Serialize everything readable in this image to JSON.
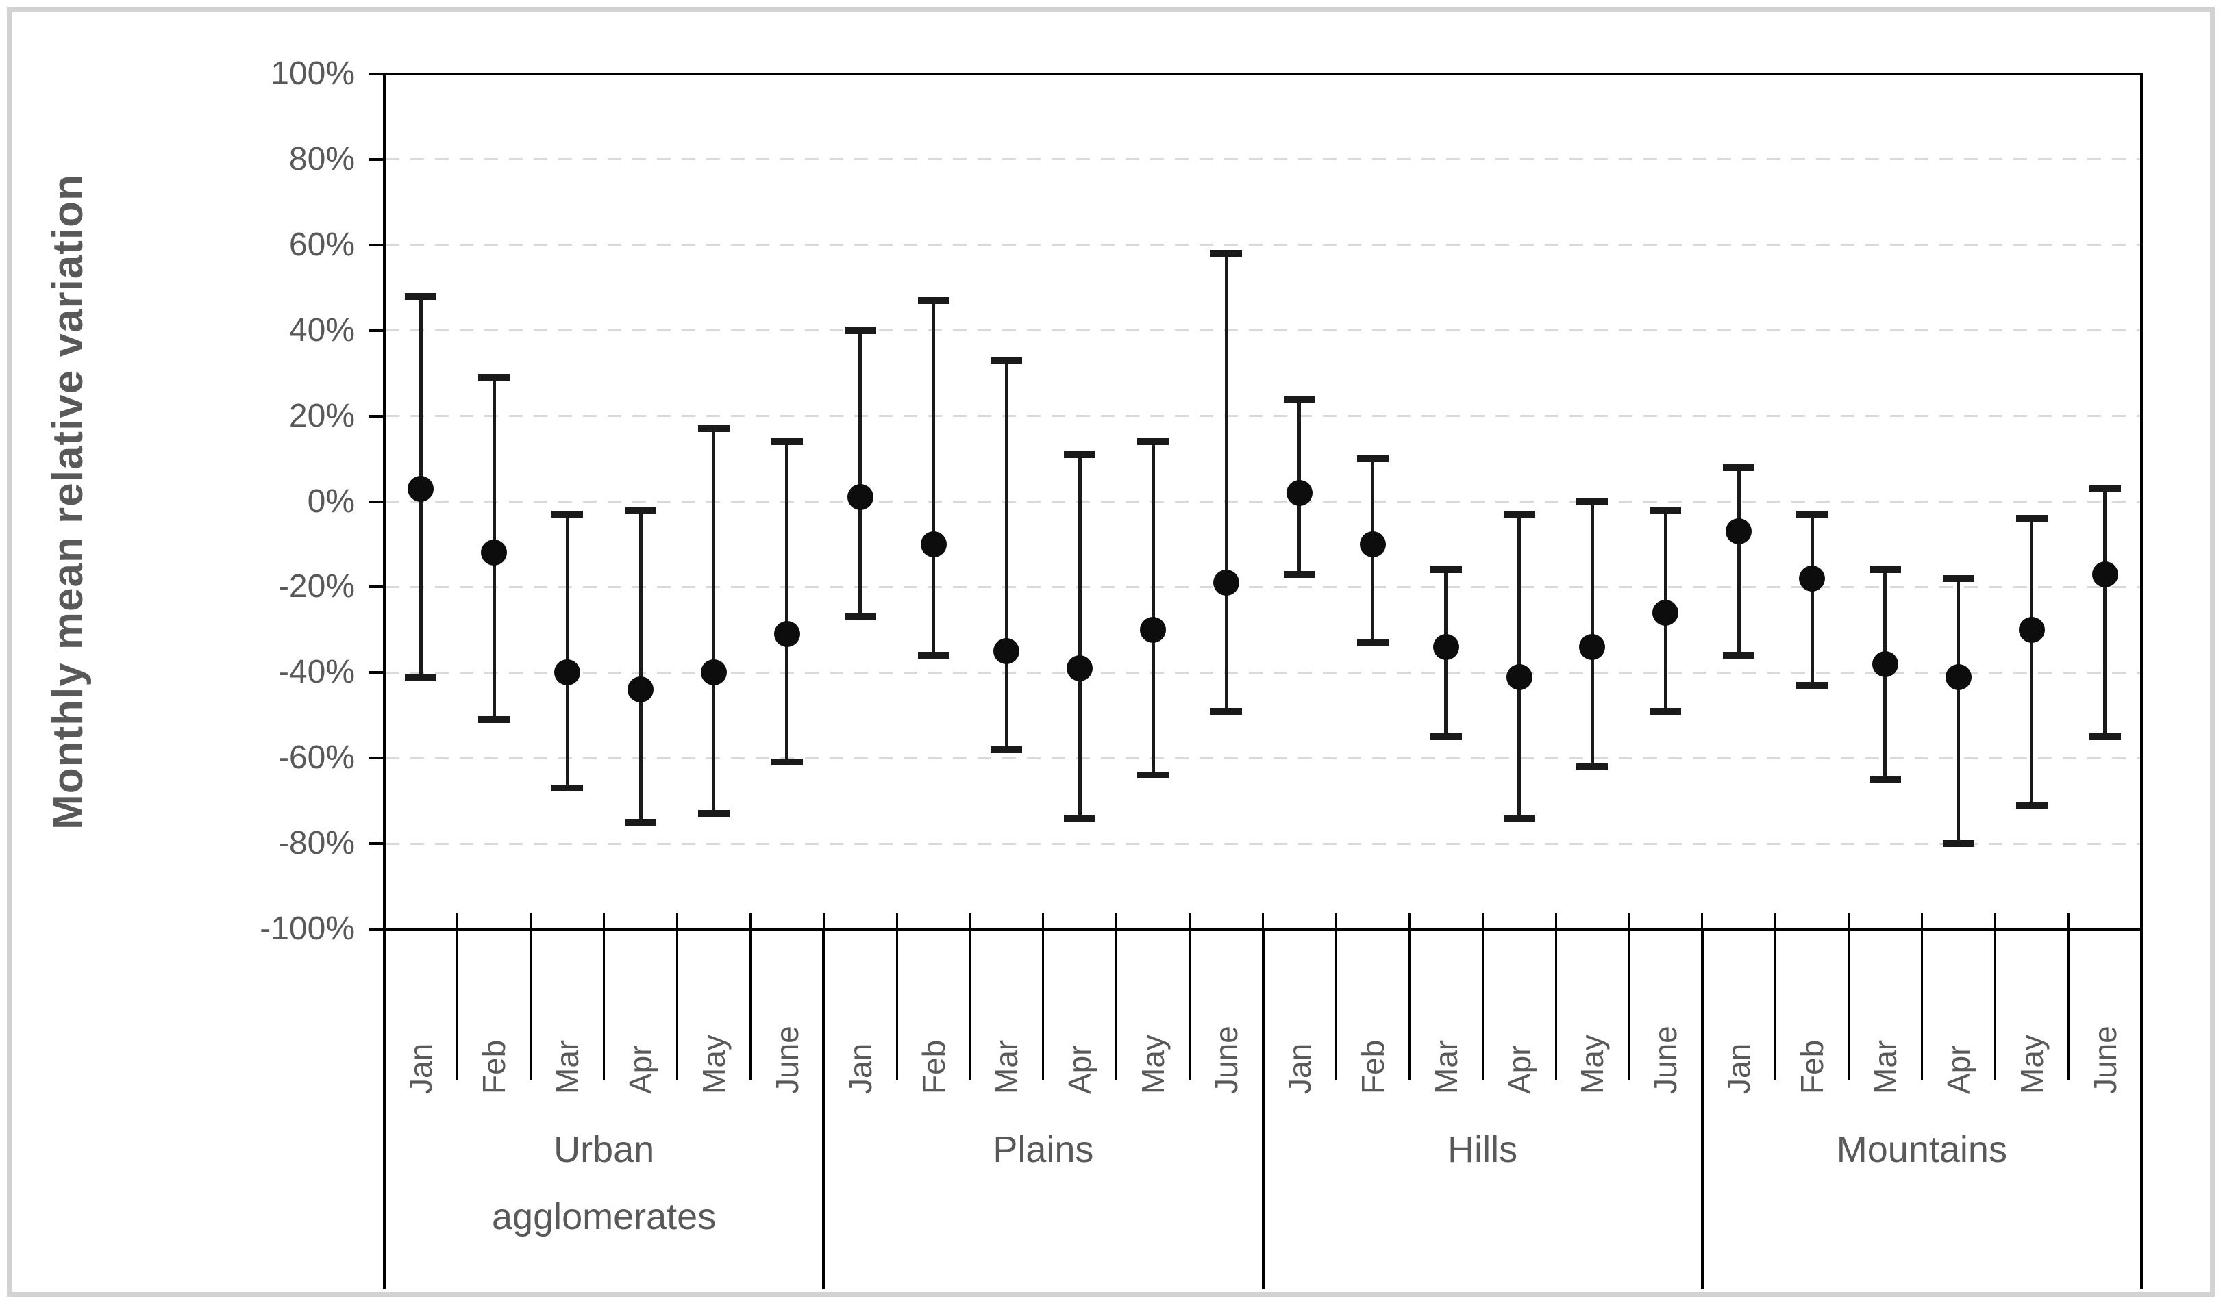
{
  "chart_data": {
    "type": "scatter",
    "subtype": "mean-with-error-bars",
    "title": "",
    "ylabel": "Monthly mean relative variation",
    "xlabel": "",
    "legend": "none",
    "grid": "horizontal-dashed",
    "y_axis": {
      "min": -100,
      "max": 100,
      "step": 20,
      "unit": "%",
      "tick_labels": [
        "100%",
        "80%",
        "60%",
        "40%",
        "20%",
        "0%",
        "-20%",
        "-40%",
        "-60%",
        "-80%",
        "-100%"
      ]
    },
    "x_axis": {
      "month_labels": [
        "Jan",
        "Feb",
        "Mar",
        "Apr",
        "May",
        "June"
      ],
      "group_labels": [
        "Urban agglomerates",
        "Plains",
        "Hills",
        "Mountains"
      ]
    },
    "groups": [
      {
        "label": "Urban agglomerates",
        "label_lines": [
          "Urban",
          "agglomerates"
        ],
        "points": [
          {
            "month": "Jan",
            "mean": 3,
            "upper": 48,
            "lower": -41
          },
          {
            "month": "Feb",
            "mean": -12,
            "upper": 29,
            "lower": -51
          },
          {
            "month": "Mar",
            "mean": -40,
            "upper": -3,
            "lower": -67
          },
          {
            "month": "Apr",
            "mean": -44,
            "upper": -2,
            "lower": -75
          },
          {
            "month": "May",
            "mean": -40,
            "upper": 17,
            "lower": -73
          },
          {
            "month": "June",
            "mean": -31,
            "upper": 14,
            "lower": -61
          }
        ]
      },
      {
        "label": "Plains",
        "label_lines": [
          "Plains"
        ],
        "points": [
          {
            "month": "Jan",
            "mean": 1,
            "upper": 40,
            "lower": -27
          },
          {
            "month": "Feb",
            "mean": -10,
            "upper": 47,
            "lower": -36
          },
          {
            "month": "Mar",
            "mean": -35,
            "upper": 33,
            "lower": -58
          },
          {
            "month": "Apr",
            "mean": -39,
            "upper": 11,
            "lower": -74
          },
          {
            "month": "May",
            "mean": -30,
            "upper": 14,
            "lower": -64
          },
          {
            "month": "June",
            "mean": -19,
            "upper": 58,
            "lower": -49
          }
        ]
      },
      {
        "label": "Hills",
        "label_lines": [
          "Hills"
        ],
        "points": [
          {
            "month": "Jan",
            "mean": 2,
            "upper": 24,
            "lower": -17
          },
          {
            "month": "Feb",
            "mean": -10,
            "upper": 10,
            "lower": -33
          },
          {
            "month": "Mar",
            "mean": -34,
            "upper": -16,
            "lower": -55
          },
          {
            "month": "Apr",
            "mean": -41,
            "upper": -3,
            "lower": -74
          },
          {
            "month": "May",
            "mean": -34,
            "upper": 0,
            "lower": -62
          },
          {
            "month": "June",
            "mean": -26,
            "upper": -2,
            "lower": -49
          }
        ]
      },
      {
        "label": "Mountains",
        "label_lines": [
          "Mountains"
        ],
        "points": [
          {
            "month": "Jan",
            "mean": -7,
            "upper": 8,
            "lower": -36
          },
          {
            "month": "Feb",
            "mean": -18,
            "upper": -3,
            "lower": -43
          },
          {
            "month": "Mar",
            "mean": -38,
            "upper": -16,
            "lower": -65
          },
          {
            "month": "Apr",
            "mean": -41,
            "upper": -18,
            "lower": -80
          },
          {
            "month": "May",
            "mean": -30,
            "upper": -4,
            "lower": -71
          },
          {
            "month": "June",
            "mean": -17,
            "upper": 3,
            "lower": -55
          }
        ]
      }
    ],
    "colors": {
      "marker": "#0d0d0d",
      "error_bar": "#1a1a1a",
      "gridline": "#d9d9d9",
      "axis": "#000000",
      "tick_label": "#595959",
      "axis_title": "#595959",
      "frame_border": "#d2d2d2",
      "background": "#ffffff"
    }
  }
}
